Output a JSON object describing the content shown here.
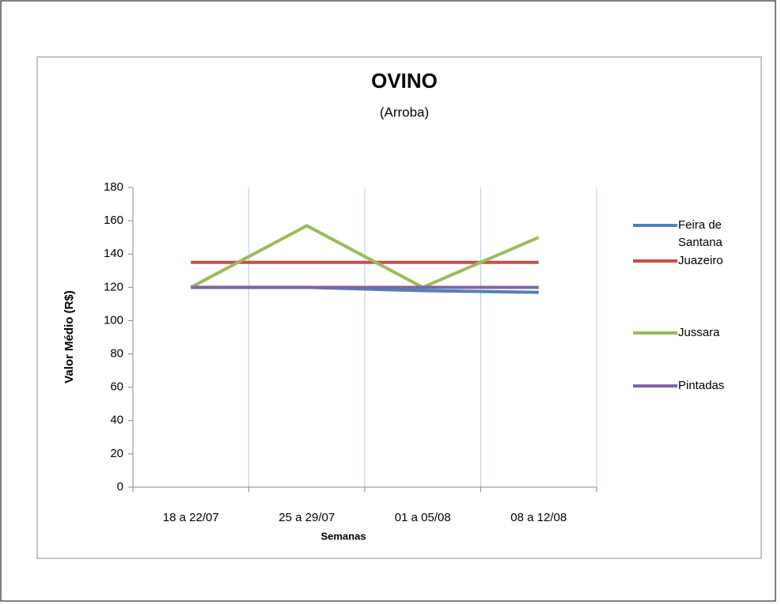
{
  "chart_data": {
    "type": "line",
    "title": "OVINO",
    "subtitle": "(Arroba)",
    "x_label": "Semanas",
    "y_label": "Valor Médio (R$)",
    "categories": [
      "18 a 22/07",
      "25 a 29/07",
      "01 a 05/08",
      "08 a 12/08"
    ],
    "series": [
      {
        "name": "Feira de Santana",
        "color": "#4f81bd",
        "values": [
          120,
          120,
          118,
          117
        ]
      },
      {
        "name": "Juazeiro",
        "color": "#c0504d",
        "values": [
          135,
          135,
          135,
          135
        ]
      },
      {
        "name": "Jussara",
        "color": "#9bbb59",
        "values": [
          120,
          157,
          120,
          150
        ]
      },
      {
        "name": "Pintadas",
        "color": "#8064a2",
        "values": [
          120,
          120,
          120,
          120
        ]
      }
    ],
    "ylim": [
      0,
      180
    ],
    "yticks": [
      0,
      20,
      40,
      60,
      80,
      100,
      120,
      140,
      160,
      180
    ],
    "grid": true,
    "legend": "right"
  }
}
